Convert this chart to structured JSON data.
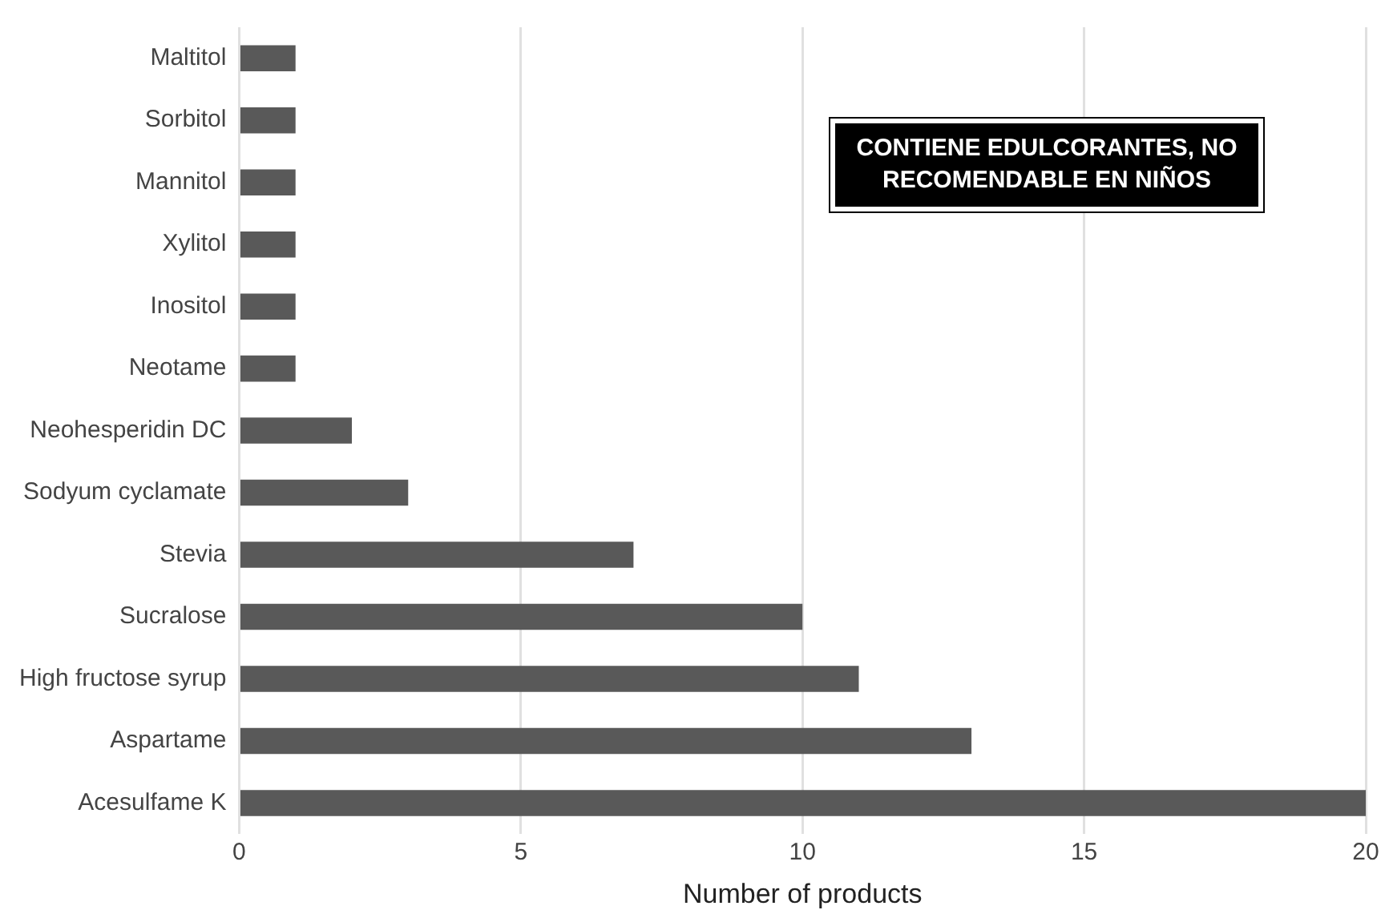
{
  "chart_data": {
    "type": "bar",
    "orientation": "horizontal",
    "categories": [
      "Maltitol",
      "Sorbitol",
      "Mannitol",
      "Xylitol",
      "Inositol",
      "Neotame",
      "Neohesperidin DC",
      "Sodyum cyclamate",
      "Stevia",
      "Sucralose",
      "High fructose syrup",
      "Aspartame",
      "Acesulfame K"
    ],
    "values": [
      1,
      1,
      1,
      1,
      1,
      1,
      2,
      3,
      7,
      10,
      11,
      13,
      20
    ],
    "color": "#595959",
    "xlabel": "Number of products",
    "xlim": [
      0,
      20
    ],
    "xticks": [
      0,
      5,
      10,
      15,
      20
    ],
    "grid": "x",
    "annotations": [
      "CONTIENE EDULCORANTES, NO RECOMENDABLE EN NIÑOS"
    ]
  }
}
